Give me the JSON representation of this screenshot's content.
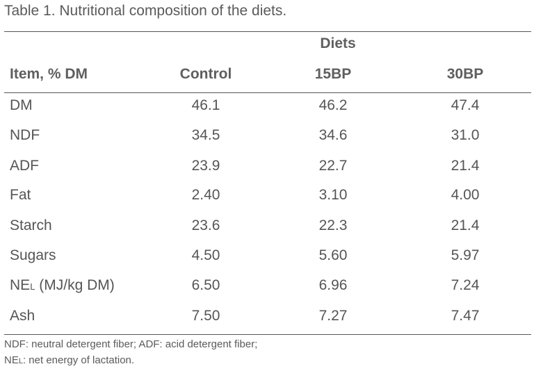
{
  "caption": "Table 1. Nutritional composition of the diets.",
  "header": {
    "group_label": "Diets",
    "item_label": "Item, % DM",
    "columns": [
      "Control",
      "15BP",
      "30BP"
    ]
  },
  "rows": [
    {
      "item": "DM",
      "values": [
        "46.1",
        "46.2",
        "47.4"
      ]
    },
    {
      "item": "NDF",
      "values": [
        "34.5",
        "34.6",
        "31.0"
      ]
    },
    {
      "item": "ADF",
      "values": [
        "23.9",
        "22.7",
        "21.4"
      ]
    },
    {
      "item": "Fat",
      "values": [
        "2.40",
        "3.10",
        "4.00"
      ]
    },
    {
      "item": "Starch",
      "values": [
        "23.6",
        "22.3",
        "21.4"
      ]
    },
    {
      "item": "Sugars",
      "values": [
        "4.50",
        "5.60",
        "5.97"
      ]
    },
    {
      "item_main": "NE",
      "item_sub": "L",
      "item_rest": " (MJ/kg DM)",
      "values": [
        "6.50",
        "6.96",
        "7.24"
      ]
    },
    {
      "item": "Ash",
      "values": [
        "7.50",
        "7.27",
        "7.47"
      ]
    }
  ],
  "footnotes": {
    "line1": "NDF: neutral detergent fiber; ADF: acid detergent fiber;",
    "line2_main": "NE",
    "line2_sub": "L",
    "line2_rest": ": net energy of lactation."
  }
}
